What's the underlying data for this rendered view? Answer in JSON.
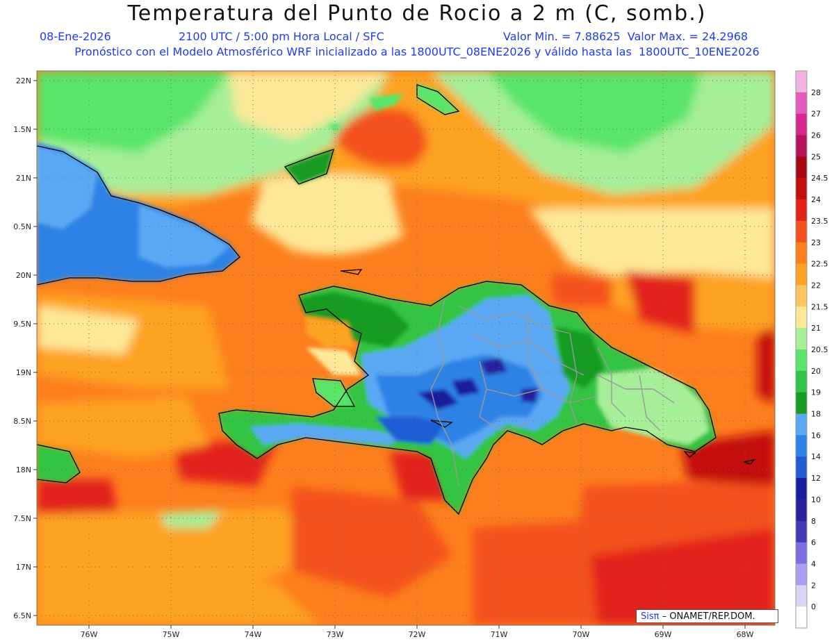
{
  "header": {
    "title": "Temperatura del Punto de Rocio a 2 m (C, somb.)",
    "date": "08-Ene-2026",
    "time": "2100 UTC / 5:00 pm Hora Local / SFC",
    "minmax": "Valor Min. = 7.88625  Valor Max. = 24.2968",
    "forecast": "Pronóstico con el Modelo Atmosférico WRF inicializado a las 1800UTC_08ENE2026 y válido hasta las  1800UTC_10ENE2026"
  },
  "map": {
    "lon_range": [
      -76.6,
      -67.6
    ],
    "lat_range": [
      16.4,
      22.1
    ],
    "lon_ticks": [
      "76W",
      "75W",
      "74W",
      "73W",
      "72W",
      "71W",
      "70W",
      "69W",
      "68W"
    ],
    "lat_ticks": [
      "22N",
      "1.5N",
      "21N",
      "0.5N",
      "20N",
      "9.5N",
      "19N",
      "8.5N",
      "18N",
      "7.5N",
      "17N",
      "6.5N"
    ]
  },
  "colorbar": {
    "labels": [
      "28",
      "27",
      "26",
      "25",
      "24.5",
      "24",
      "23.5",
      "23",
      "22.5",
      "22",
      "21.5",
      "21",
      "20.5",
      "20",
      "19",
      "18",
      "16",
      "14",
      "12",
      "10",
      "8",
      "6",
      "4",
      "2",
      "0"
    ],
    "colors": [
      "#f2b3de",
      "#e45bbf",
      "#d8288f",
      "#b8145e",
      "#a80812",
      "#c40d0d",
      "#e2221a",
      "#f4511e",
      "#fd7e1c",
      "#fea224",
      "#fec662",
      "#fde898",
      "#a6ee98",
      "#58e56a",
      "#32c442",
      "#189c22",
      "#5aa8f4",
      "#2f82e6",
      "#1f5cd4",
      "#1b1c9e",
      "#28239c",
      "#4338b6",
      "#7b6fe0",
      "#a99df2",
      "#d8d4f6",
      "#ffffff"
    ]
  },
  "credit": {
    "sis": "Sisπ",
    "rest": " – ONAMET/REP.DOM."
  }
}
